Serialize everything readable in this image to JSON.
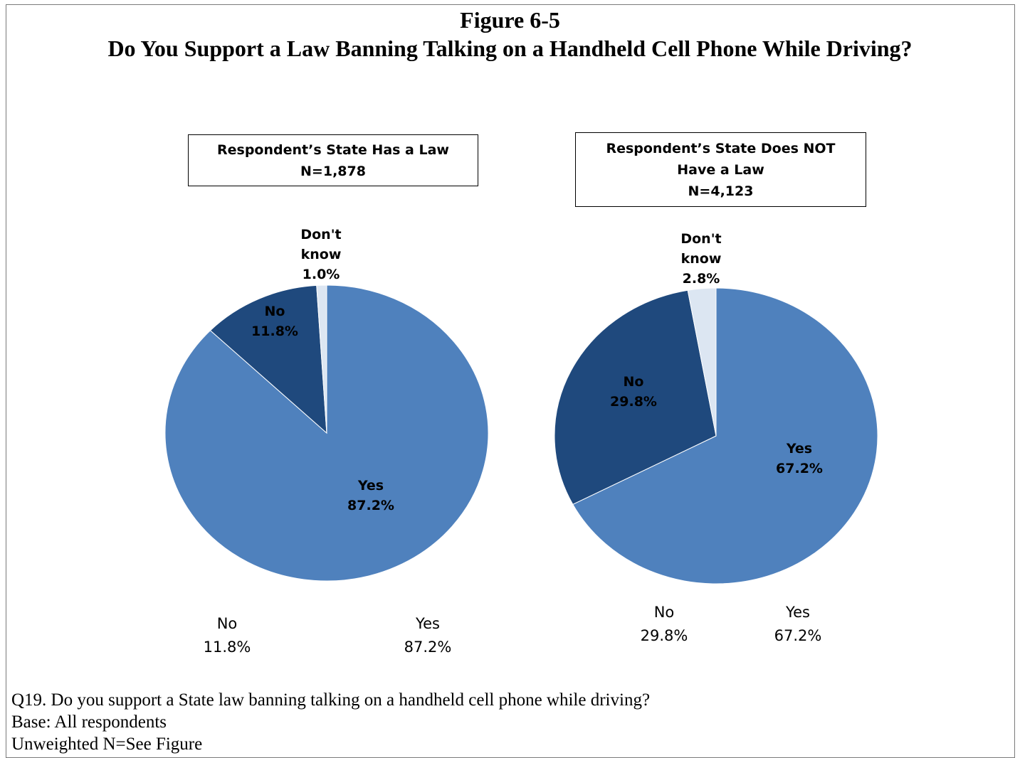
{
  "title": {
    "line1": "Figure 6-5",
    "line2": "Do You Support a Law Banning Talking on a Handheld Cell Phone While Driving?"
  },
  "chart_data": [
    {
      "type": "pie",
      "panel_lines": [
        "Respondent’s State Has a Law",
        "N=1,878"
      ],
      "slices": [
        {
          "name": "Yes",
          "value": 87.2,
          "label": "87.2%",
          "color": "#4f81bd"
        },
        {
          "name": "No",
          "value": 11.8,
          "label": "11.8%",
          "color": "#1f497d"
        },
        {
          "name": "Don't know",
          "value": 1.0,
          "label": "1.0%",
          "color": "#dce6f2"
        }
      ],
      "legend_below": [
        {
          "name": "No",
          "label": "11.8%"
        },
        {
          "name": "Yes",
          "label": "87.2%"
        }
      ]
    },
    {
      "type": "pie",
      "panel_lines": [
        "Respondent’s State Does NOT",
        "Have a Law",
        "N=4,123"
      ],
      "slices": [
        {
          "name": "Yes",
          "value": 67.2,
          "label": "67.2%",
          "color": "#4f81bd"
        },
        {
          "name": "No",
          "value": 29.8,
          "label": "29.8%",
          "color": "#1f497d"
        },
        {
          "name": "Don't know",
          "value": 2.8,
          "label": "2.8%",
          "color": "#dce6f2"
        }
      ],
      "legend_below": [
        {
          "name": "No",
          "label": "29.8%"
        },
        {
          "name": "Yes",
          "label": "67.2%"
        }
      ]
    }
  ],
  "footnote": {
    "question": "Q19. Do you support a State law banning talking on a handheld cell phone while driving?",
    "base": "Base: All respondents",
    "unweighted": "Unweighted N=See Figure"
  }
}
